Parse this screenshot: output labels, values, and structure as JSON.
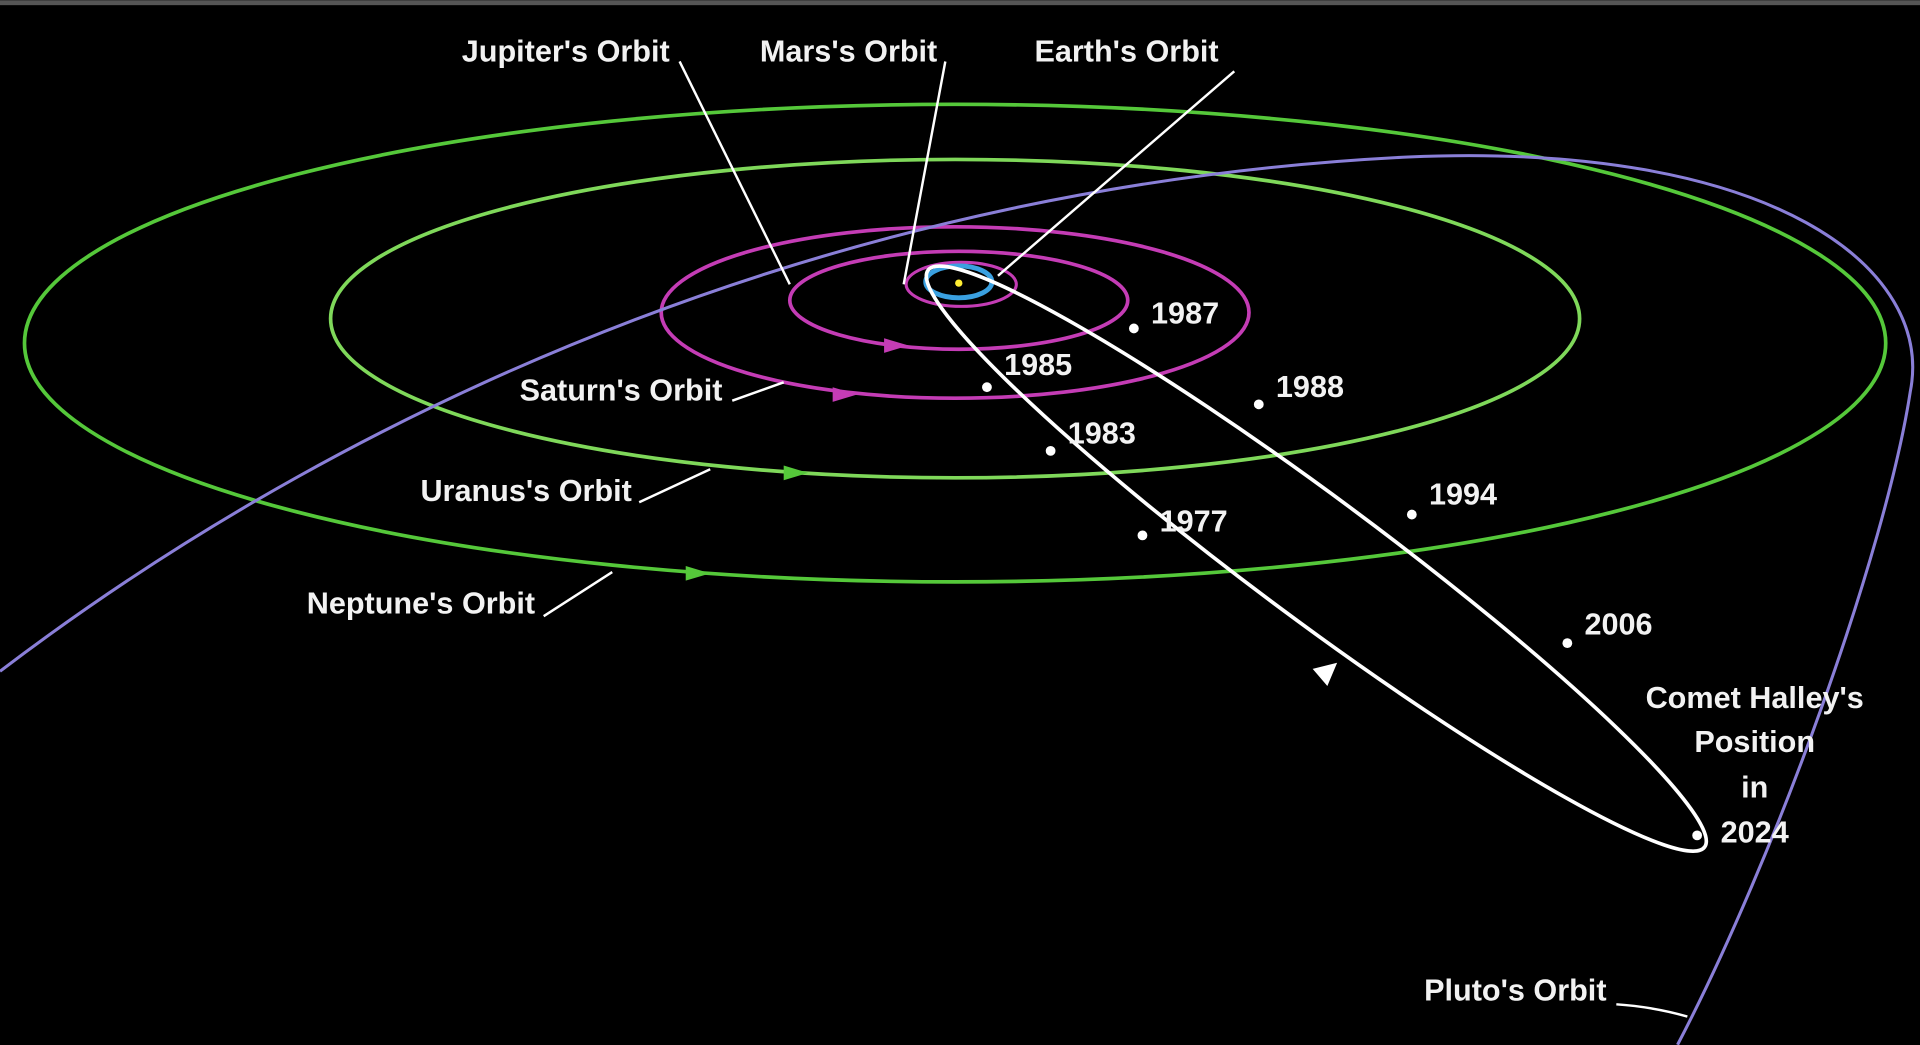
{
  "orbit_labels": {
    "jupiter": "Jupiter's Orbit",
    "mars": "Mars's Orbit",
    "earth": "Earth's Orbit",
    "saturn": "Saturn's Orbit",
    "uranus": "Uranus's Orbit",
    "neptune": "Neptune's Orbit",
    "pluto": "Pluto's Orbit"
  },
  "comet_positions": [
    "1987",
    "1988",
    "1994",
    "2006",
    "1985",
    "1983",
    "1977"
  ],
  "comet_label": [
    "Comet Halley's",
    "Position",
    "in",
    "2024"
  ]
}
